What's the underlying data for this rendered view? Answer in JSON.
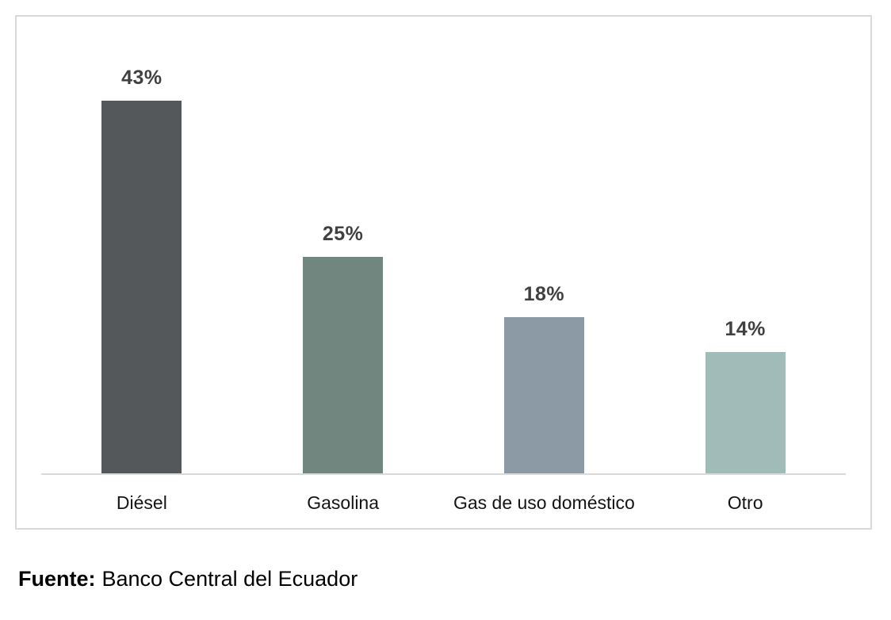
{
  "chart_data": {
    "type": "bar",
    "categories": [
      "Diésel",
      "Gasolina",
      "Gas de uso doméstico",
      "Otro"
    ],
    "values": [
      43,
      25,
      18,
      14
    ],
    "value_labels": [
      "43%",
      "25%",
      "18%",
      "14%"
    ],
    "series_colors": [
      "#54585a",
      "#71867f",
      "#8c9aa5",
      "#a0bbb8"
    ],
    "title": "",
    "xlabel": "",
    "ylabel": "",
    "ylim": [
      0,
      53
    ],
    "grid": false,
    "legend_position": "none",
    "value_label_color": "#404040"
  },
  "footer": {
    "source_label": "Fuente:",
    "source_text": "Banco Central del Ecuador"
  },
  "colors": {
    "background": "#ffffff",
    "frame_border": "#d9d9d9",
    "axis_line": "#d9d9d9",
    "category_text": "#141414",
    "footer_text": "#000000"
  }
}
